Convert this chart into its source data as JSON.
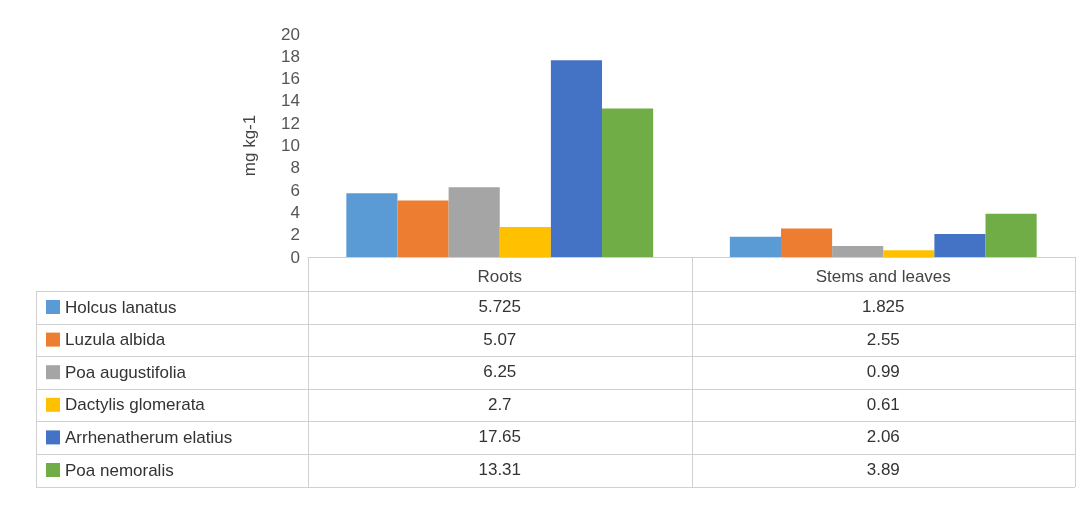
{
  "chart_data": {
    "type": "bar",
    "ylabel": "mg kg-1",
    "categories": [
      "Roots",
      "Stems and leaves"
    ],
    "series": [
      {
        "name": "Holcus lanatus",
        "color": "#5b9bd5",
        "values": [
          5.725,
          1.825
        ]
      },
      {
        "name": "Luzula albida",
        "color": "#ed7d31",
        "values": [
          5.07,
          2.55
        ]
      },
      {
        "name": "Poa augustifolia",
        "color": "#a5a5a5",
        "values": [
          6.25,
          0.99
        ]
      },
      {
        "name": "Dactylis glomerata",
        "color": "#ffc000",
        "values": [
          2.7,
          0.61
        ]
      },
      {
        "name": "Arrhenatherum elatius",
        "color": "#4472c4",
        "values": [
          17.65,
          2.06
        ]
      },
      {
        "name": "Poa nemoralis",
        "color": "#70ad47",
        "values": [
          13.31,
          3.89
        ]
      }
    ],
    "ylim": [
      0,
      20
    ],
    "yticks": [
      0,
      2,
      4,
      6,
      8,
      10,
      12,
      14,
      16,
      18,
      20
    ],
    "grid": false,
    "legend": "bottom left",
    "data_labels": true
  }
}
